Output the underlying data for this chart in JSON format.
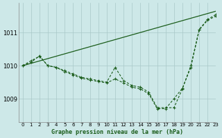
{
  "title": "Graphe pression niveau de la mer (hPa)",
  "background_color": "#cde8e8",
  "line_color": "#1a5c1a",
  "grid_color": "#a8c8c8",
  "ylim": [
    1008.3,
    1011.9
  ],
  "xlim": [
    -0.5,
    23
  ],
  "yticks": [
    1009,
    1010,
    1011
  ],
  "xticks": [
    0,
    1,
    2,
    3,
    4,
    5,
    6,
    7,
    8,
    9,
    10,
    11,
    12,
    13,
    14,
    15,
    16,
    17,
    18,
    19,
    20,
    21,
    22,
    23
  ],
  "series_straight": [
    [
      0,
      1010.0
    ],
    [
      23,
      1011.65
    ]
  ],
  "series_wiggly1": {
    "x": [
      0,
      1,
      2,
      3,
      4,
      5,
      6,
      7,
      8,
      9,
      10,
      11,
      12,
      13,
      14,
      15,
      16,
      17,
      18,
      19,
      20,
      21,
      22,
      23
    ],
    "y": [
      1010.0,
      1010.1,
      1010.3,
      1010.0,
      1009.95,
      1009.85,
      1009.75,
      1009.65,
      1009.6,
      1009.55,
      1009.5,
      1009.95,
      1009.55,
      1009.4,
      1009.35,
      1009.2,
      1008.73,
      1008.73,
      1008.73,
      1009.3,
      1010.0,
      1011.1,
      1011.4,
      1011.55
    ]
  },
  "series_wiggly2": {
    "x": [
      0,
      1,
      2,
      3,
      4,
      5,
      6,
      7,
      8,
      9,
      10,
      11,
      12,
      13,
      14,
      15,
      16,
      17,
      18,
      19,
      20,
      21,
      22,
      23
    ],
    "y": [
      1010.0,
      1010.15,
      1010.28,
      1010.0,
      1009.95,
      1009.82,
      1009.72,
      1009.62,
      1009.57,
      1009.52,
      1009.48,
      1009.6,
      1009.48,
      1009.35,
      1009.3,
      1009.15,
      1008.7,
      1008.7,
      1009.0,
      1009.32,
      1009.95,
      1011.08,
      1011.38,
      1011.5
    ]
  }
}
